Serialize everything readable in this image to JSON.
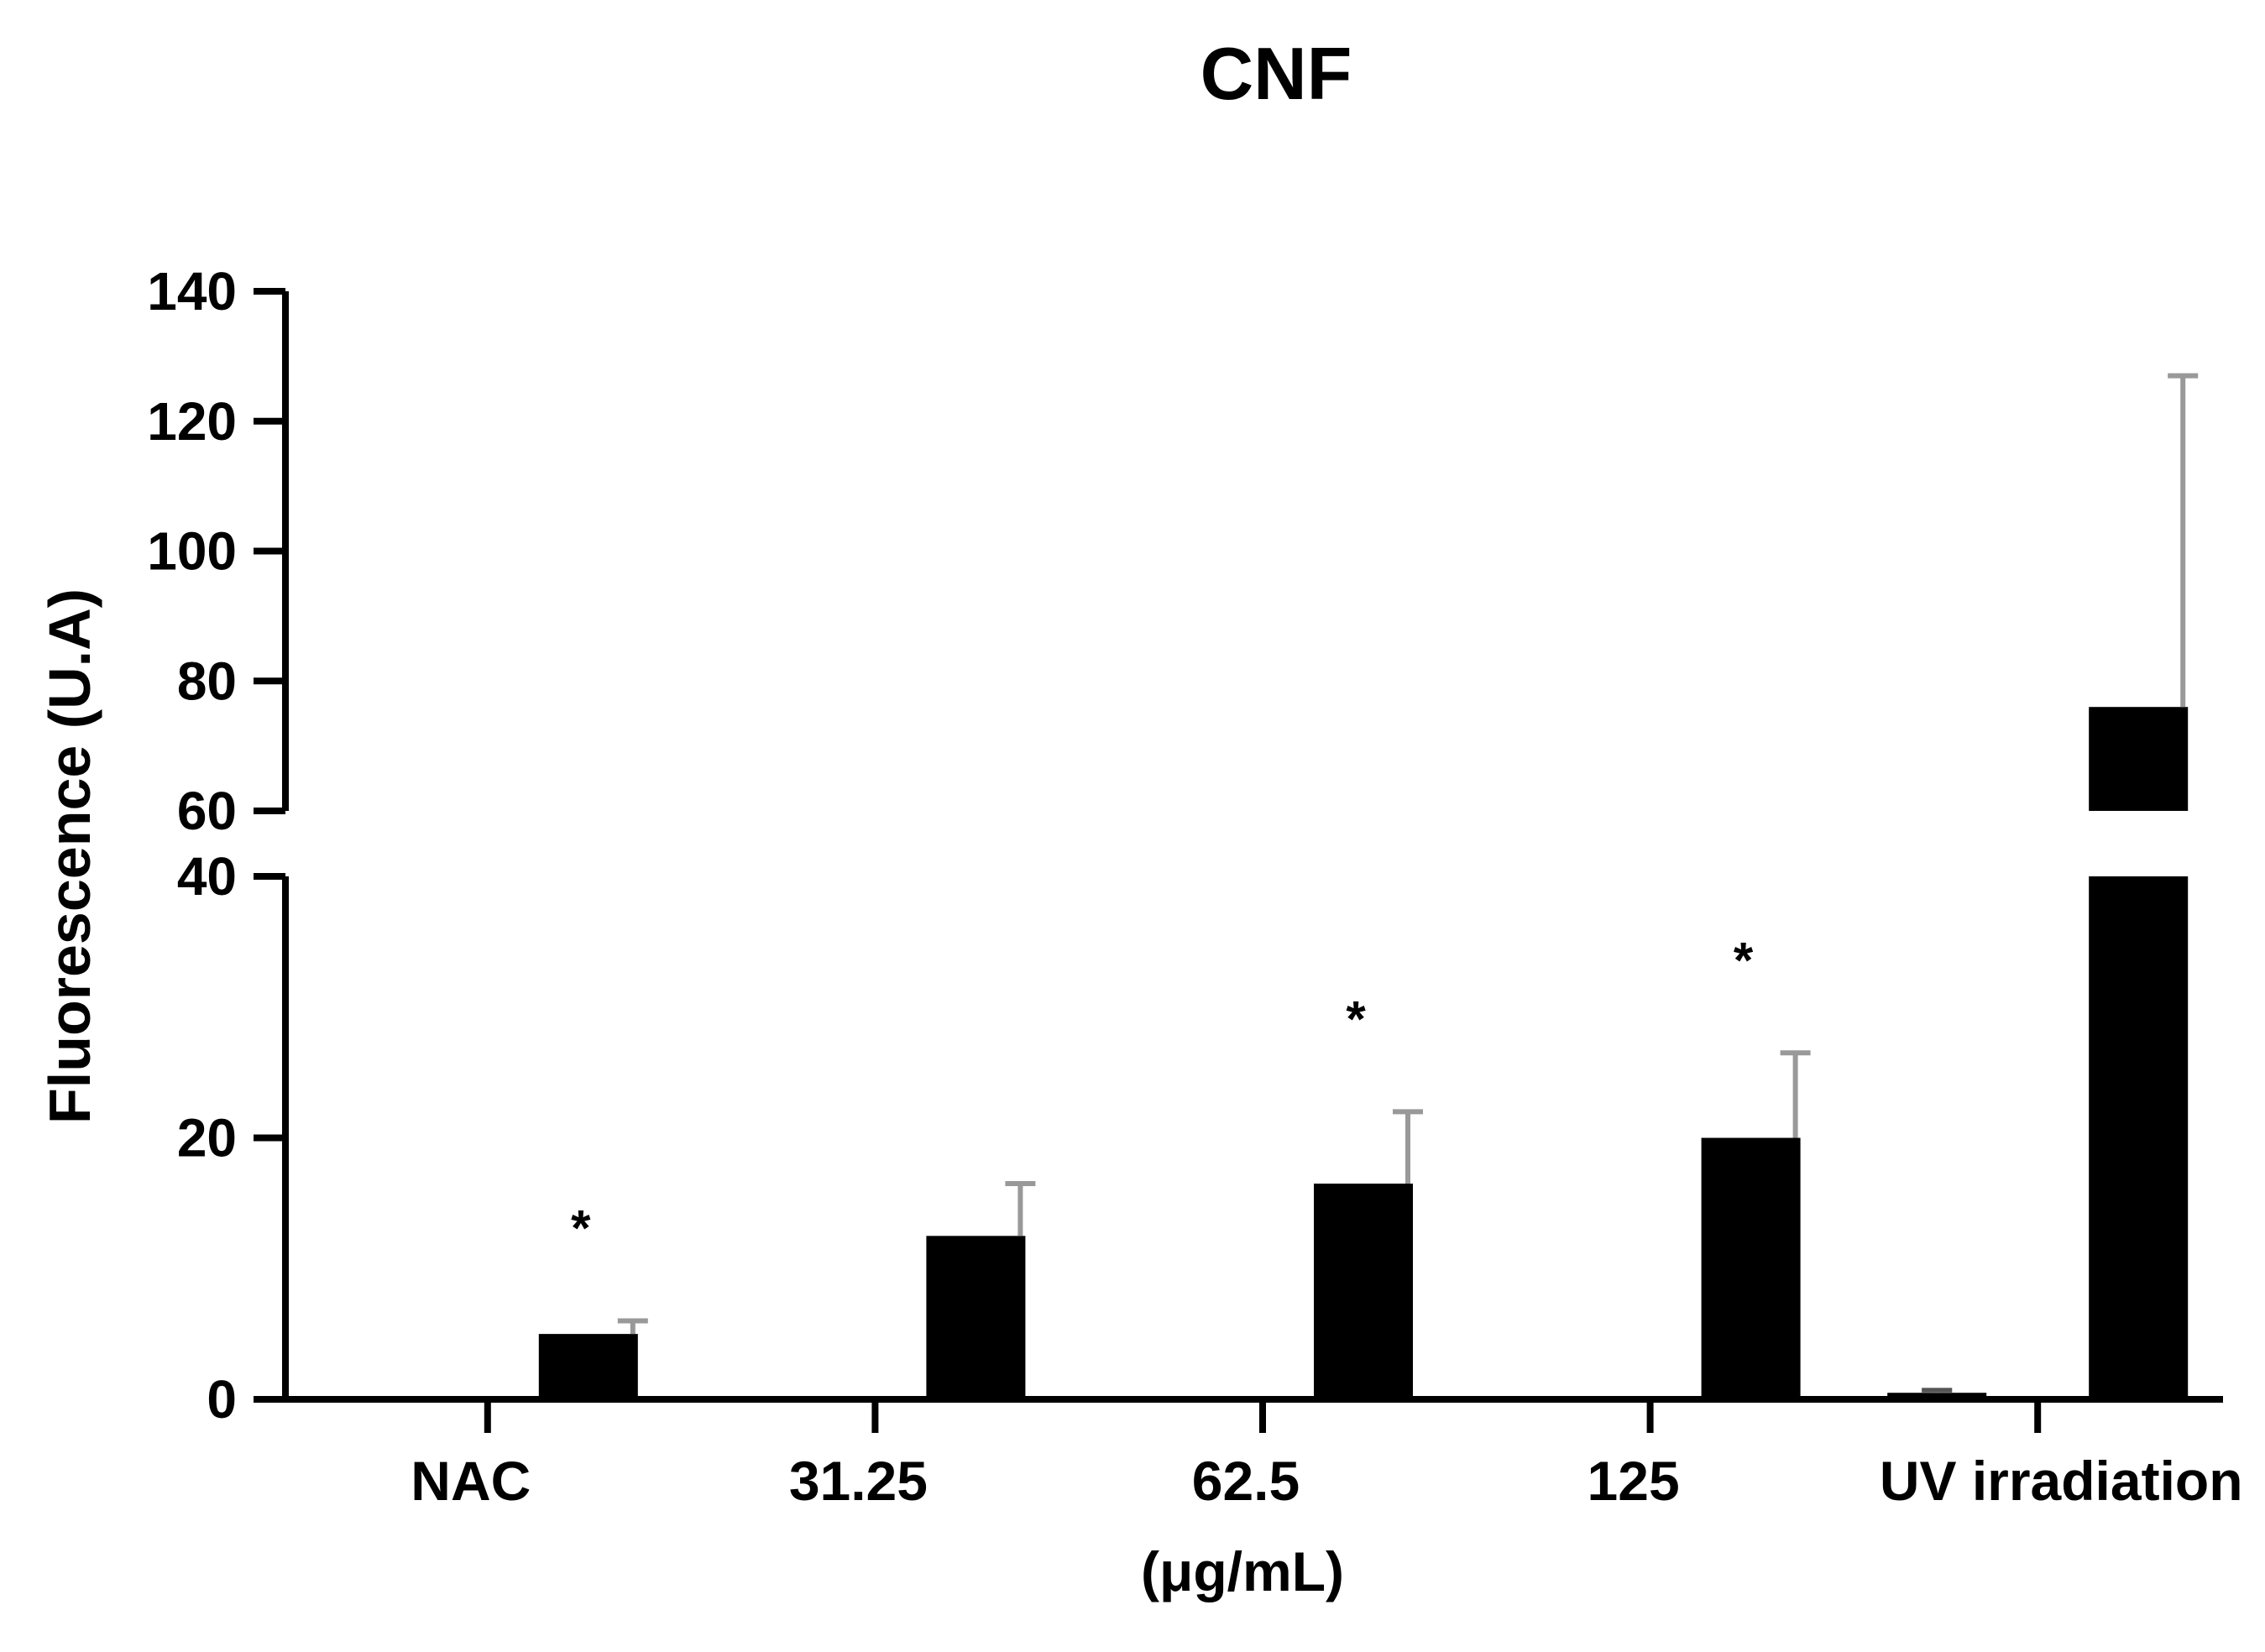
{
  "chart_data": {
    "type": "bar",
    "title": "CNF",
    "xlabel": "(μg/mL)",
    "ylabel": "Fluorescence (U.A)",
    "categories": [
      "NAC",
      "31.25",
      "62.5",
      "125",
      "UV irradiation"
    ],
    "series": [
      {
        "values": [
          0,
          0,
          0,
          0,
          0.5
        ],
        "errors": [
          0,
          0,
          0,
          0,
          0.2
        ],
        "color": "#000000"
      },
      {
        "values": [
          5,
          12.5,
          16.5,
          20,
          76
        ],
        "errors": [
          1,
          4,
          5.5,
          6.5,
          51
        ],
        "color": "#000000"
      }
    ],
    "significance": [
      "*",
      "",
      "*",
      "*",
      ""
    ],
    "y_axis_break": {
      "lower_range": [
        0,
        40
      ],
      "upper_range": [
        60,
        140
      ]
    },
    "yticks_lower": [
      0,
      20,
      40
    ],
    "yticks_upper": [
      60,
      80,
      100,
      120,
      140
    ],
    "grid": false,
    "error_bar_color": "#999999"
  }
}
